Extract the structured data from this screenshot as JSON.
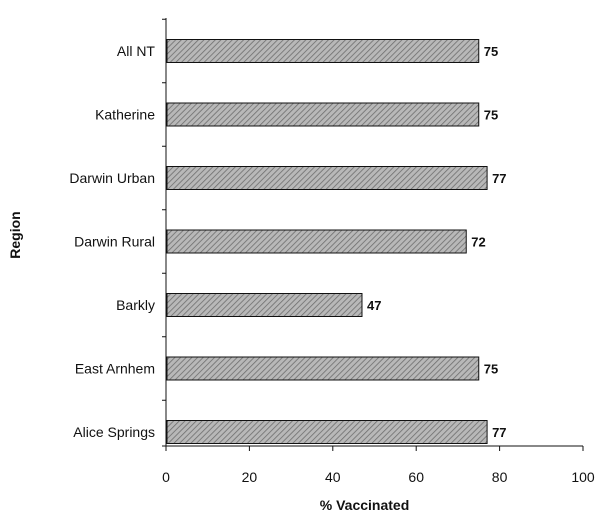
{
  "chart_data": {
    "type": "bar",
    "orientation": "horizontal",
    "categories": [
      "All NT",
      "Katherine",
      "Darwin Urban",
      "Darwin Rural",
      "Barkly",
      "East Arnhem",
      "Alice Springs"
    ],
    "values": [
      75,
      75,
      77,
      72,
      47,
      75,
      77
    ],
    "data_labels": [
      "75",
      "75",
      "77",
      "72",
      "47",
      "75",
      "77"
    ],
    "title": "",
    "xlabel": "% Vaccinated",
    "ylabel": "Region",
    "xlim": [
      0,
      100
    ],
    "xticks": [
      0,
      20,
      40,
      60,
      80,
      100
    ],
    "xtick_labels": [
      "0",
      "20",
      "40",
      "60",
      "80",
      "100"
    ],
    "grid": false,
    "bar_fill": "#b8b8b8",
    "bar_hatch": "#6e6e6e",
    "bar_edge": "#111111"
  }
}
